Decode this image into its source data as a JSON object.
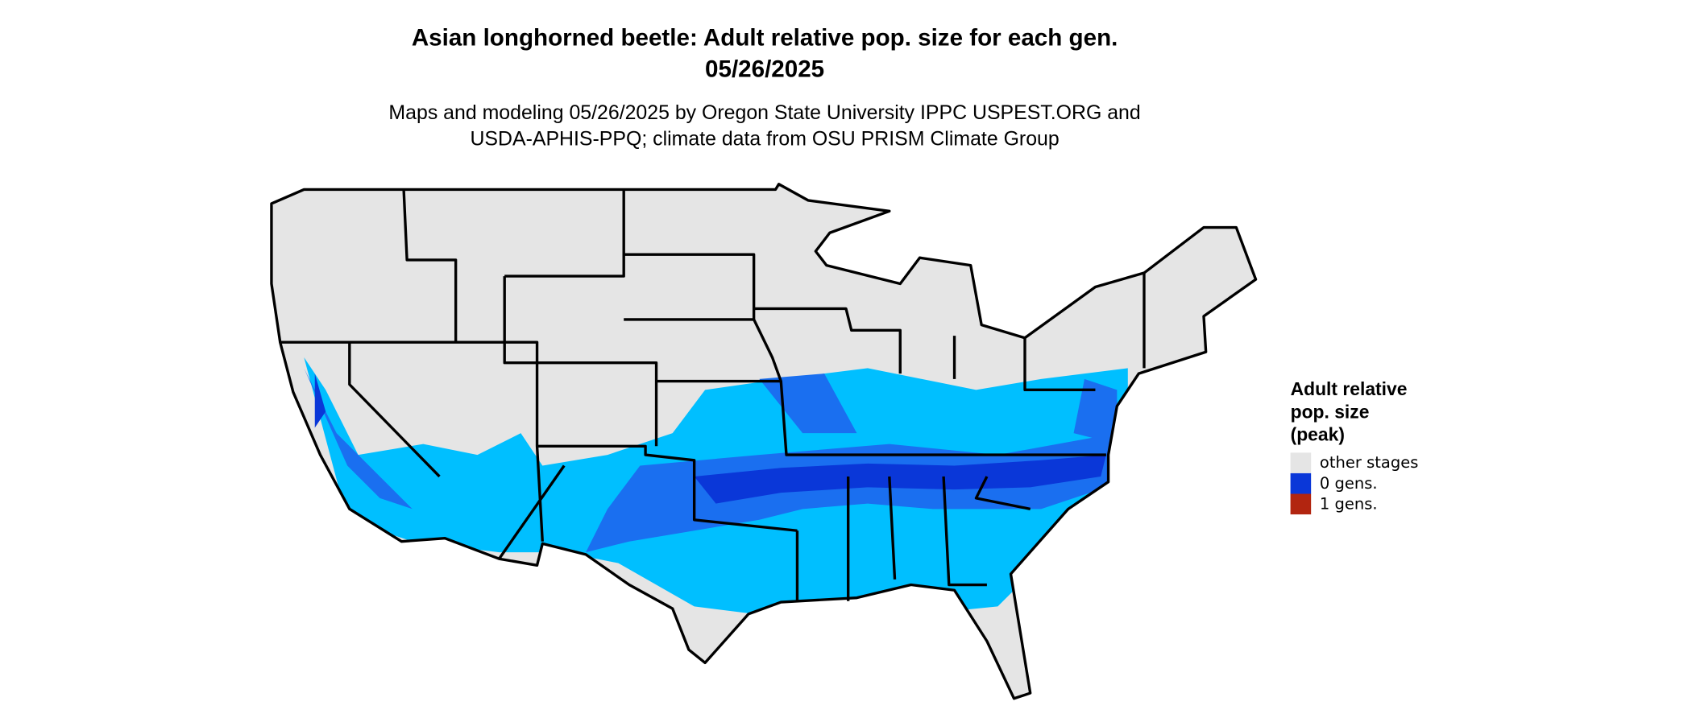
{
  "title": [
    "Asian longhorned beetle: Adult relative pop. size for each gen.",
    "05/26/2025"
  ],
  "subtitle": [
    "Maps and modeling 05/26/2025 by Oregon State University IPPC USPEST.ORG and",
    "USDA-APHIS-PPQ; climate data from OSU PRISM Climate Group"
  ],
  "legend": {
    "title": [
      "Adult relative",
      "pop. size",
      "(peak)"
    ],
    "items": [
      {
        "label": "other stages",
        "color": "#e5e5e5"
      },
      {
        "label": "0 gens.",
        "color": "#0a37d8"
      },
      {
        "label": "1 gens.",
        "color": "#b22510"
      }
    ]
  }
}
